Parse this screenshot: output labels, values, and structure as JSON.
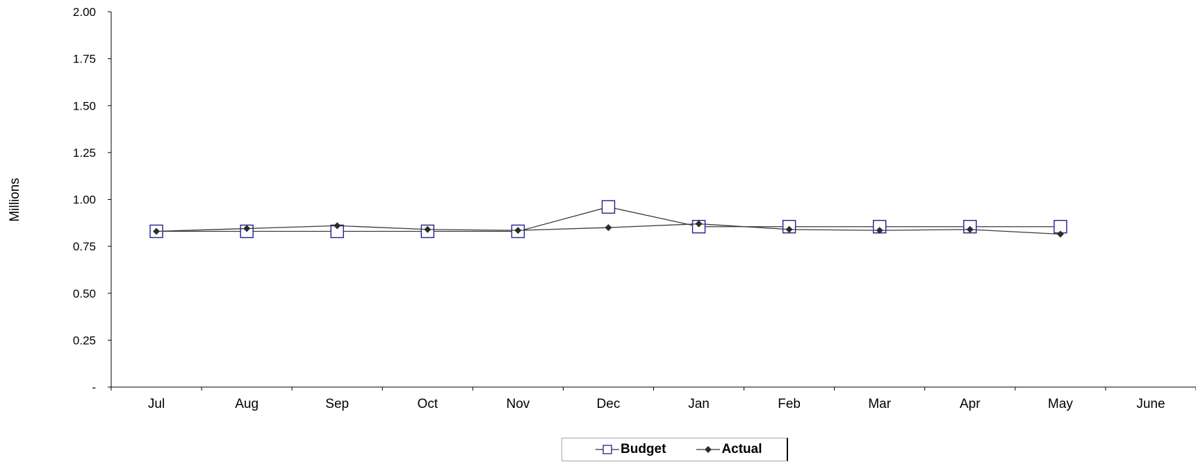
{
  "chart_data": {
    "type": "line",
    "title": "",
    "xlabel": "",
    "ylabel": "Millions",
    "categories": [
      "Jul",
      "Aug",
      "Sep",
      "Oct",
      "Nov",
      "Dec",
      "Jan",
      "Feb",
      "Mar",
      "Apr",
      "May",
      "June"
    ],
    "y_ticks": [
      {
        "value": 0,
        "label": "-"
      },
      {
        "value": 0.25,
        "label": "0.25"
      },
      {
        "value": 0.5,
        "label": "0.50"
      },
      {
        "value": 0.75,
        "label": "0.75"
      },
      {
        "value": 1.0,
        "label": "1.00"
      },
      {
        "value": 1.25,
        "label": "1.25"
      },
      {
        "value": 1.5,
        "label": "1.50"
      },
      {
        "value": 1.75,
        "label": "1.75"
      },
      {
        "value": 2.0,
        "label": "2.00"
      }
    ],
    "ylim": [
      0,
      2.0
    ],
    "grid": false,
    "legend_position": "bottom",
    "series": [
      {
        "name": "Budget",
        "marker": "square",
        "color": "#1f1f8f",
        "values": [
          0.83,
          0.83,
          0.83,
          0.83,
          0.83,
          0.96,
          0.855,
          0.855,
          0.855,
          0.855,
          0.855,
          null
        ]
      },
      {
        "name": "Actual",
        "marker": "diamond",
        "color": "#2b2b2b",
        "values": [
          0.83,
          0.845,
          0.86,
          0.84,
          0.835,
          0.85,
          0.87,
          0.84,
          0.835,
          0.84,
          0.815,
          null
        ]
      }
    ]
  }
}
